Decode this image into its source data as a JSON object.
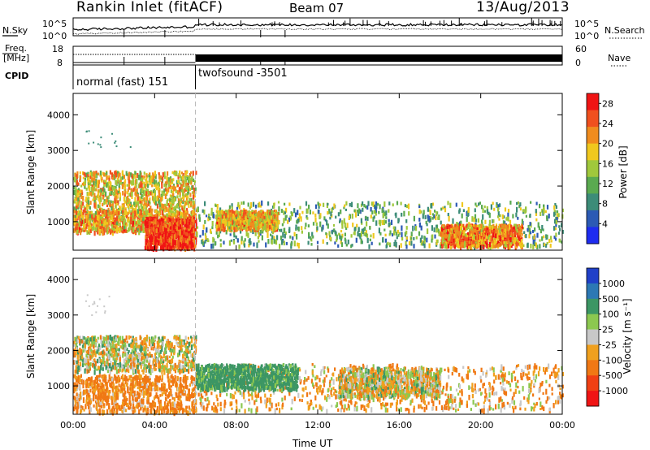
{
  "header": {
    "station": "Rankin Inlet (fitACF)",
    "beam": "Beam 07",
    "date": "13/Aug/2013"
  },
  "status_panels": {
    "nsky_label": "N.Sky",
    "nsearch_label": "N.Search",
    "noise_ticks": [
      "10^5",
      "10^0"
    ],
    "freq_label_1": "Freq.",
    "freq_label_2": "[MHz]",
    "freq_ticks": [
      "18",
      "8"
    ],
    "nave_label": "Nave",
    "nave_ticks": [
      "60",
      "0"
    ],
    "cpid_label": "CPID",
    "cpid_segments": [
      {
        "name": "normal (fast) 151",
        "start_hour": 0,
        "end_hour": 6
      },
      {
        "name": "twofsound -3501",
        "start_hour": 6,
        "end_hour": 24
      }
    ]
  },
  "chart_data": [
    {
      "type": "heatmap",
      "title": "",
      "xlabel": "Time UT",
      "ylabel": "Slant Range [km]",
      "x_ticks": [
        "00:00",
        "04:00",
        "08:00",
        "12:00",
        "16:00",
        "20:00",
        "00:00"
      ],
      "xlim": [
        0,
        24
      ],
      "ylim": [
        200,
        4600
      ],
      "y_ticks": [
        1000,
        2000,
        3000,
        4000
      ],
      "colorbar_label": "Power [dB]",
      "colorbar_ticks": [
        4,
        8,
        12,
        16,
        20,
        24,
        28
      ],
      "colorbar_range": [
        0,
        30
      ],
      "colors": [
        "#1e2cf0",
        "#2c5ab4",
        "#3c8c78",
        "#5aaa50",
        "#a0c83c",
        "#f0c81e",
        "#f08c1e",
        "#f0501e",
        "#f01414"
      ],
      "echo_regions": [
        {
          "t": [
            0.0,
            6.0
          ],
          "range": [
            1300,
            2400
          ],
          "level": 18
        },
        {
          "t": [
            0.0,
            6.0
          ],
          "range": [
            700,
            1300
          ],
          "level": 20
        },
        {
          "t": [
            3.5,
            6.0
          ],
          "range": [
            250,
            1100
          ],
          "level": 27
        },
        {
          "t": [
            6.0,
            24.0
          ],
          "range": [
            300,
            1550
          ],
          "level": 12
        },
        {
          "t": [
            7.0,
            10.0
          ],
          "range": [
            800,
            1300
          ],
          "level": 20
        },
        {
          "t": [
            18.0,
            22.0
          ],
          "range": [
            300,
            900
          ],
          "level": 22
        }
      ]
    },
    {
      "type": "heatmap",
      "title": "",
      "xlabel": "Time UT",
      "ylabel": "Slant Range [km]",
      "x_ticks": [
        "00:00",
        "04:00",
        "08:00",
        "12:00",
        "16:00",
        "20:00",
        "00:00"
      ],
      "xlim": [
        0,
        24
      ],
      "ylim": [
        200,
        4600
      ],
      "y_ticks": [
        1000,
        2000,
        3000,
        4000
      ],
      "colorbar_label": "Velocity [m s⁻¹]",
      "colorbar_ticks": [
        1000,
        500,
        100,
        25,
        -25,
        -100,
        -500,
        -1000
      ],
      "colors": [
        "#2040c8",
        "#2c78b4",
        "#3c9664",
        "#8cc850",
        "#c8c8c8",
        "#f0a01e",
        "#f07814",
        "#f04014",
        "#f01414"
      ],
      "echo_regions": [
        {
          "t": [
            0.0,
            6.0
          ],
          "range": [
            1400,
            2400
          ],
          "level": 0
        },
        {
          "t": [
            0.0,
            6.0
          ],
          "range": [
            250,
            1300
          ],
          "level": -150
        },
        {
          "t": [
            6.0,
            24.0
          ],
          "range": [
            300,
            1600
          ],
          "level": -80
        },
        {
          "t": [
            6.0,
            11.0
          ],
          "range": [
            900,
            1600
          ],
          "level": 200
        },
        {
          "t": [
            13.0,
            18.0
          ],
          "range": [
            700,
            1500
          ],
          "level": 0
        }
      ]
    }
  ]
}
